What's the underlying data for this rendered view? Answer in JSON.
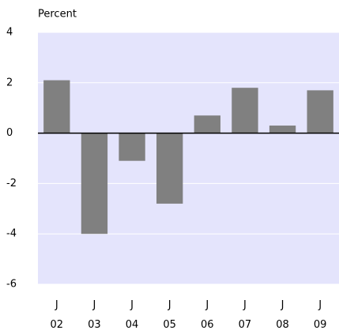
{
  "chart_data": {
    "type": "bar",
    "ylabel": "Percent",
    "categories": [
      "J 02",
      "J 03",
      "J 04",
      "J 05",
      "J 06",
      "J 07",
      "J 08",
      "J 09"
    ],
    "values": [
      2.1,
      -4.0,
      -1.1,
      -2.8,
      0.7,
      1.8,
      0.3,
      1.7
    ],
    "color": "#808080",
    "background": "#e4e4fc",
    "ylim": [
      -6,
      4
    ],
    "yticks": [
      -6,
      -4,
      -2,
      0,
      2,
      4
    ],
    "grid": true
  }
}
